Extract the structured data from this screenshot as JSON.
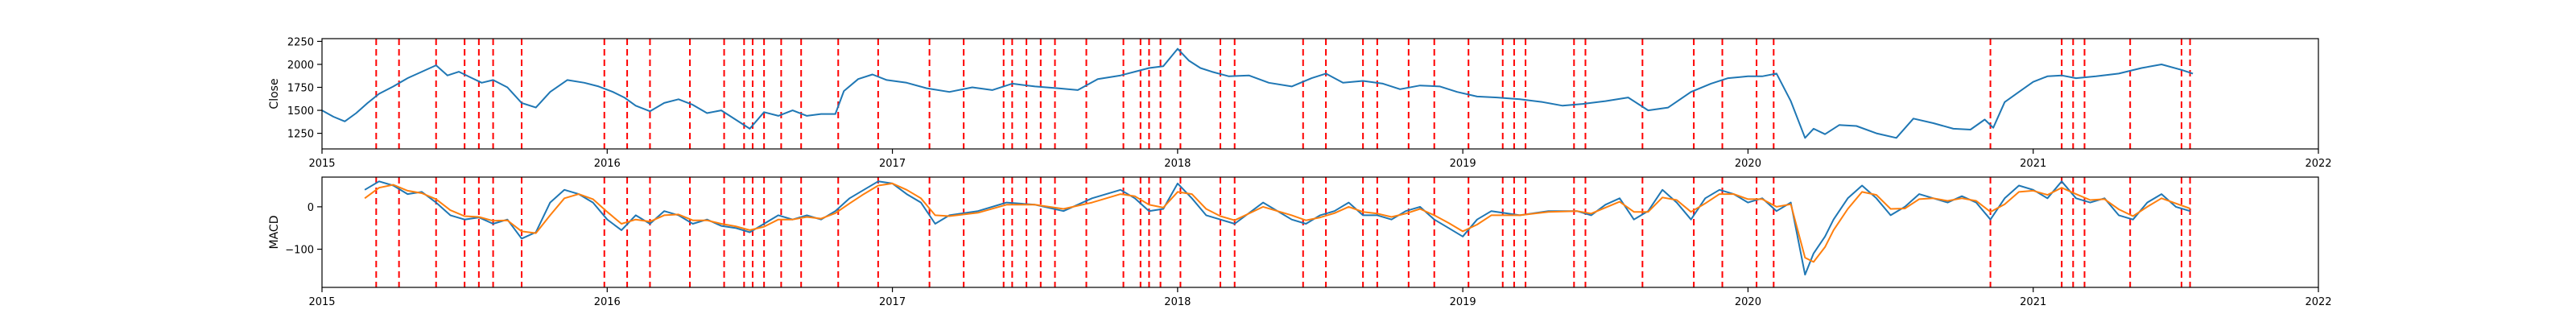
{
  "chart_data": [
    {
      "type": "line",
      "title": "",
      "xlabel": "",
      "ylabel": "Close",
      "xlim": [
        2015.0,
        2022.0
      ],
      "ylim": [
        1080,
        2280
      ],
      "x_ticks": [
        "2015",
        "2016",
        "2017",
        "2018",
        "2019",
        "2020",
        "2021",
        "2022"
      ],
      "y_ticks": [
        1250,
        1500,
        1750,
        2000,
        2250
      ],
      "y_tick_labels": [
        "1250",
        "1500",
        "1750",
        "2000",
        "2250"
      ],
      "grid": false,
      "series": [
        {
          "color": "#1f77b4",
          "x": [
            2015.0,
            2015.04,
            2015.08,
            2015.12,
            2015.16,
            2015.2,
            2015.25,
            2015.3,
            2015.35,
            2015.4,
            2015.44,
            2015.48,
            2015.52,
            2015.56,
            2015.6,
            2015.65,
            2015.7,
            2015.75,
            2015.8,
            2015.86,
            2015.92,
            2015.97,
            2016.02,
            2016.06,
            2016.1,
            2016.15,
            2016.2,
            2016.25,
            2016.3,
            2016.35,
            2016.4,
            2016.45,
            2016.5,
            2016.55,
            2016.6,
            2016.65,
            2016.7,
            2016.75,
            2016.8,
            2016.83,
            2016.88,
            2016.93,
            2016.98,
            2017.05,
            2017.12,
            2017.2,
            2017.28,
            2017.35,
            2017.42,
            2017.5,
            2017.58,
            2017.65,
            2017.72,
            2017.8,
            2017.85,
            2017.9,
            2017.95,
            2018.0,
            2018.04,
            2018.08,
            2018.12,
            2018.18,
            2018.25,
            2018.32,
            2018.4,
            2018.47,
            2018.52,
            2018.58,
            2018.65,
            2018.72,
            2018.78,
            2018.85,
            2018.92,
            2018.98,
            2019.05,
            2019.12,
            2019.2,
            2019.28,
            2019.35,
            2019.42,
            2019.5,
            2019.58,
            2019.65,
            2019.72,
            2019.8,
            2019.87,
            2019.93,
            2020.0,
            2020.05,
            2020.1,
            2020.15,
            2020.2,
            2020.23,
            2020.27,
            2020.32,
            2020.38,
            2020.45,
            2020.52,
            2020.58,
            2020.65,
            2020.72,
            2020.78,
            2020.83,
            2020.86,
            2020.9,
            2020.95,
            2021.0,
            2021.05,
            2021.1,
            2021.15,
            2021.22,
            2021.3,
            2021.38,
            2021.45,
            2021.52,
            2021.56
          ],
          "y": [
            1500,
            1430,
            1380,
            1470,
            1580,
            1680,
            1760,
            1850,
            1920,
            1990,
            1880,
            1920,
            1860,
            1800,
            1830,
            1750,
            1580,
            1530,
            1700,
            1830,
            1800,
            1760,
            1700,
            1640,
            1550,
            1490,
            1580,
            1620,
            1560,
            1470,
            1500,
            1400,
            1300,
            1480,
            1440,
            1500,
            1440,
            1460,
            1460,
            1710,
            1840,
            1890,
            1830,
            1800,
            1740,
            1700,
            1750,
            1720,
            1790,
            1760,
            1740,
            1720,
            1840,
            1880,
            1920,
            1960,
            1980,
            2170,
            2040,
            1960,
            1920,
            1870,
            1880,
            1800,
            1760,
            1850,
            1900,
            1800,
            1820,
            1790,
            1730,
            1770,
            1760,
            1700,
            1650,
            1640,
            1620,
            1590,
            1550,
            1570,
            1600,
            1640,
            1500,
            1530,
            1700,
            1790,
            1850,
            1870,
            1870,
            1900,
            1600,
            1200,
            1300,
            1240,
            1340,
            1330,
            1250,
            1200,
            1410,
            1360,
            1300,
            1290,
            1400,
            1310,
            1590,
            1700,
            1810,
            1870,
            1880,
            1850,
            1870,
            1900,
            1960,
            2000,
            1940,
            1900
          ]
        }
      ],
      "vlines_x": [
        2015.19,
        2015.27,
        2015.4,
        2015.5,
        2015.55,
        2015.6,
        2015.7,
        2015.99,
        2016.07,
        2016.15,
        2016.29,
        2016.41,
        2016.48,
        2016.51,
        2016.55,
        2016.61,
        2016.68,
        2016.81,
        2016.95,
        2017.13,
        2017.25,
        2017.39,
        2017.42,
        2017.47,
        2017.52,
        2017.57,
        2017.68,
        2017.81,
        2017.87,
        2017.9,
        2017.94,
        2018.01,
        2018.15,
        2018.2,
        2018.44,
        2018.52,
        2018.65,
        2018.7,
        2018.81,
        2018.9,
        2019.02,
        2019.14,
        2019.18,
        2019.22,
        2019.39,
        2019.43,
        2019.63,
        2019.81,
        2019.91,
        2020.03,
        2020.09,
        2020.85,
        2021.1,
        2021.14,
        2021.18,
        2021.34,
        2021.52,
        2021.55
      ],
      "vline_color": "#ff0000"
    },
    {
      "type": "line",
      "title": "",
      "xlabel": "",
      "ylabel": "MACD",
      "xlim": [
        2015.0,
        2022.0
      ],
      "ylim": [
        -190,
        70
      ],
      "x_ticks": [
        "2015",
        "2016",
        "2017",
        "2018",
        "2019",
        "2020",
        "2021",
        "2022"
      ],
      "y_ticks": [
        0,
        -100
      ],
      "y_tick_labels": [
        "0",
        "−100"
      ],
      "grid": false,
      "series": [
        {
          "color": "#1f77b4",
          "x": [
            2015.15,
            2015.2,
            2015.25,
            2015.3,
            2015.35,
            2015.4,
            2015.45,
            2015.5,
            2015.55,
            2015.6,
            2015.65,
            2015.7,
            2015.75,
            2015.8,
            2015.85,
            2015.9,
            2015.95,
            2016.0,
            2016.05,
            2016.1,
            2016.15,
            2016.2,
            2016.25,
            2016.3,
            2016.35,
            2016.4,
            2016.45,
            2016.5,
            2016.55,
            2016.6,
            2016.65,
            2016.7,
            2016.75,
            2016.8,
            2016.85,
            2016.9,
            2016.95,
            2017.0,
            2017.05,
            2017.1,
            2017.15,
            2017.2,
            2017.3,
            2017.4,
            2017.5,
            2017.6,
            2017.7,
            2017.8,
            2017.85,
            2017.9,
            2017.95,
            2018.0,
            2018.05,
            2018.1,
            2018.15,
            2018.2,
            2018.3,
            2018.4,
            2018.45,
            2018.5,
            2018.55,
            2018.6,
            2018.65,
            2018.7,
            2018.75,
            2018.8,
            2018.85,
            2018.9,
            2018.95,
            2019.0,
            2019.05,
            2019.1,
            2019.2,
            2019.3,
            2019.4,
            2019.45,
            2019.5,
            2019.55,
            2019.6,
            2019.65,
            2019.7,
            2019.75,
            2019.8,
            2019.85,
            2019.9,
            2019.95,
            2020.0,
            2020.05,
            2020.1,
            2020.15,
            2020.2,
            2020.23,
            2020.27,
            2020.3,
            2020.35,
            2020.4,
            2020.45,
            2020.5,
            2020.55,
            2020.6,
            2020.65,
            2020.7,
            2020.75,
            2020.8,
            2020.85,
            2020.9,
            2020.95,
            2021.0,
            2021.05,
            2021.1,
            2021.15,
            2021.2,
            2021.25,
            2021.3,
            2021.35,
            2021.4,
            2021.45,
            2021.5,
            2021.55
          ],
          "y": [
            40,
            60,
            50,
            30,
            35,
            10,
            -20,
            -30,
            -25,
            -40,
            -30,
            -75,
            -60,
            10,
            40,
            30,
            10,
            -30,
            -55,
            -20,
            -40,
            -10,
            -20,
            -40,
            -30,
            -45,
            -50,
            -60,
            -40,
            -20,
            -30,
            -20,
            -30,
            -10,
            20,
            40,
            60,
            55,
            30,
            10,
            -40,
            -20,
            -10,
            10,
            5,
            -10,
            20,
            40,
            20,
            -10,
            -5,
            55,
            20,
            -20,
            -30,
            -40,
            10,
            -30,
            -40,
            -20,
            -10,
            10,
            -20,
            -20,
            -30,
            -10,
            0,
            -30,
            -50,
            -70,
            -30,
            -10,
            -20,
            -10,
            -10,
            -20,
            5,
            20,
            -30,
            -10,
            40,
            10,
            -30,
            20,
            40,
            30,
            10,
            20,
            -10,
            10,
            -160,
            -110,
            -70,
            -30,
            20,
            50,
            20,
            -20,
            0,
            30,
            20,
            10,
            25,
            10,
            -30,
            20,
            50,
            40,
            20,
            60,
            20,
            10,
            20,
            -20,
            -30,
            10,
            30,
            0,
            -10
          ]
        },
        {
          "color": "#ff7f0e",
          "x": [
            2015.15,
            2015.2,
            2015.25,
            2015.3,
            2015.35,
            2015.4,
            2015.45,
            2015.5,
            2015.55,
            2015.6,
            2015.65,
            2015.7,
            2015.75,
            2015.8,
            2015.85,
            2015.9,
            2015.95,
            2016.0,
            2016.05,
            2016.1,
            2016.15,
            2016.2,
            2016.25,
            2016.3,
            2016.35,
            2016.4,
            2016.45,
            2016.5,
            2016.55,
            2016.6,
            2016.65,
            2016.7,
            2016.75,
            2016.8,
            2016.85,
            2016.9,
            2016.95,
            2017.0,
            2017.05,
            2017.1,
            2017.15,
            2017.2,
            2017.3,
            2017.4,
            2017.5,
            2017.6,
            2017.7,
            2017.8,
            2017.85,
            2017.9,
            2017.95,
            2018.0,
            2018.05,
            2018.1,
            2018.15,
            2018.2,
            2018.3,
            2018.4,
            2018.45,
            2018.5,
            2018.55,
            2018.6,
            2018.65,
            2018.7,
            2018.75,
            2018.8,
            2018.85,
            2018.9,
            2018.95,
            2019.0,
            2019.05,
            2019.1,
            2019.2,
            2019.3,
            2019.4,
            2019.45,
            2019.5,
            2019.55,
            2019.6,
            2019.65,
            2019.7,
            2019.75,
            2019.8,
            2019.85,
            2019.9,
            2019.95,
            2020.0,
            2020.05,
            2020.1,
            2020.15,
            2020.2,
            2020.23,
            2020.27,
            2020.3,
            2020.35,
            2020.4,
            2020.45,
            2020.5,
            2020.55,
            2020.6,
            2020.65,
            2020.7,
            2020.75,
            2020.8,
            2020.85,
            2020.9,
            2020.95,
            2021.0,
            2021.05,
            2021.1,
            2021.15,
            2021.2,
            2021.25,
            2021.3,
            2021.35,
            2021.4,
            2021.45,
            2021.5,
            2021.55
          ],
          "y": [
            20,
            45,
            52,
            38,
            32,
            18,
            -8,
            -22,
            -24,
            -33,
            -32,
            -58,
            -62,
            -20,
            20,
            30,
            18,
            -12,
            -40,
            -30,
            -35,
            -20,
            -18,
            -32,
            -32,
            -40,
            -46,
            -55,
            -47,
            -30,
            -30,
            -24,
            -28,
            -15,
            8,
            30,
            50,
            55,
            40,
            20,
            -20,
            -22,
            -14,
            5,
            5,
            -5,
            10,
            30,
            25,
            5,
            -2,
            35,
            30,
            -5,
            -22,
            -32,
            0,
            -20,
            -32,
            -25,
            -15,
            0,
            -12,
            -16,
            -24,
            -16,
            -5,
            -20,
            -38,
            -58,
            -42,
            -20,
            -20,
            -12,
            -10,
            -16,
            -2,
            12,
            -12,
            -12,
            22,
            16,
            -12,
            8,
            30,
            30,
            18,
            18,
            0,
            6,
            -120,
            -130,
            -95,
            -55,
            -5,
            35,
            28,
            -5,
            -4,
            18,
            20,
            14,
            20,
            14,
            -12,
            6,
            35,
            38,
            28,
            45,
            30,
            16,
            18,
            -6,
            -22,
            0,
            20,
            8,
            -4
          ]
        }
      ],
      "vlines_x": [
        2015.19,
        2015.27,
        2015.4,
        2015.5,
        2015.55,
        2015.6,
        2015.7,
        2015.99,
        2016.07,
        2016.15,
        2016.29,
        2016.41,
        2016.48,
        2016.51,
        2016.55,
        2016.61,
        2016.68,
        2016.81,
        2016.95,
        2017.13,
        2017.25,
        2017.39,
        2017.42,
        2017.47,
        2017.52,
        2017.57,
        2017.68,
        2017.81,
        2017.87,
        2017.9,
        2017.94,
        2018.01,
        2018.15,
        2018.2,
        2018.44,
        2018.52,
        2018.65,
        2018.7,
        2018.81,
        2018.9,
        2019.02,
        2019.14,
        2019.18,
        2019.22,
        2019.39,
        2019.43,
        2019.63,
        2019.81,
        2019.91,
        2020.03,
        2020.09,
        2020.85,
        2021.1,
        2021.14,
        2021.18,
        2021.34,
        2021.52,
        2021.55
      ],
      "vline_color": "#ff0000"
    }
  ]
}
